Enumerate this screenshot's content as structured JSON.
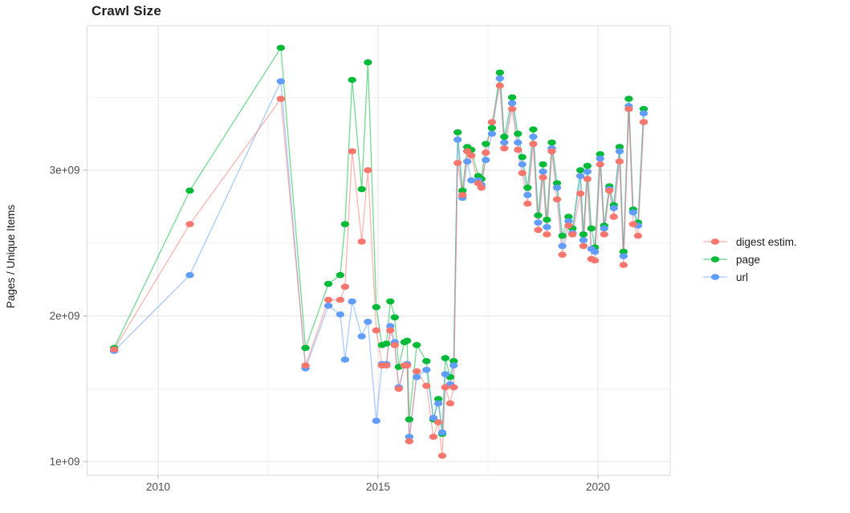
{
  "title": "Crawl Size",
  "y_axis": {
    "label": "Pages / Unique Items",
    "tick_labels": [
      "3e+09",
      "2e+09",
      "1e+09"
    ],
    "tick_values": [
      3,
      2,
      1
    ],
    "minor_values": [
      3.5,
      2.5,
      1.5
    ]
  },
  "x_axis": {
    "tick_labels": [
      "2010",
      "2015",
      "2020"
    ],
    "tick_values": [
      2010,
      2015,
      2020
    ],
    "minor_values": [
      2012.5,
      2017.5
    ]
  },
  "legend": {
    "items": [
      {
        "label": "digest estim.",
        "color": "#F8766D"
      },
      {
        "label": "page",
        "color": "#00BA38"
      },
      {
        "label": "url",
        "color": "#619CFF"
      }
    ]
  },
  "chart_data": {
    "type": "line",
    "title": "Crawl Size",
    "xlabel": "",
    "ylabel": "Pages / Unique Items",
    "values_unit": "1e9 (billions)",
    "xlim": [
      2008.4,
      2021.6
    ],
    "ylim": [
      0.9,
      4.0
    ],
    "x_ticks": [
      2010,
      2015,
      2020
    ],
    "y_ticks": [
      1000000000,
      2000000000,
      3000000000
    ],
    "grid": true,
    "legend_position": "right",
    "marker": "ellipse",
    "x_years": [
      2009.0,
      2010.72,
      2012.79,
      2013.35,
      2013.87,
      2014.14,
      2014.25,
      2014.41,
      2014.63,
      2014.77,
      2014.96,
      2015.09,
      2015.19,
      2015.28,
      2015.38,
      2015.47,
      2015.6,
      2015.66,
      2015.71,
      2015.88,
      2016.1,
      2016.26,
      2016.37,
      2016.46,
      2016.53,
      2016.64,
      2016.72,
      2016.81,
      2016.92,
      2017.03,
      2017.12,
      2017.28,
      2017.35,
      2017.45,
      2017.59,
      2017.77,
      2017.87,
      2018.05,
      2018.18,
      2018.28,
      2018.4,
      2018.53,
      2018.64,
      2018.75,
      2018.84,
      2018.95,
      2019.07,
      2019.19,
      2019.33,
      2019.42,
      2019.6,
      2019.67,
      2019.76,
      2019.85,
      2019.93,
      2020.05,
      2020.14,
      2020.26,
      2020.36,
      2020.49,
      2020.58,
      2020.7,
      2020.8,
      2020.91,
      2021.04
    ],
    "series": [
      {
        "name": "digest estim.",
        "color": "#F8766D",
        "values": [
          1.77,
          2.63,
          3.49,
          1.66,
          2.11,
          2.11,
          2.2,
          3.13,
          2.51,
          3.0,
          1.9,
          1.66,
          1.66,
          1.9,
          1.8,
          1.5,
          1.66,
          1.66,
          1.14,
          1.62,
          1.52,
          1.17,
          1.27,
          1.04,
          1.51,
          1.4,
          1.51,
          3.05,
          2.83,
          3.13,
          3.1,
          2.91,
          2.88,
          3.12,
          3.33,
          3.58,
          3.15,
          3.42,
          3.14,
          2.98,
          2.77,
          3.18,
          2.59,
          2.95,
          2.56,
          3.13,
          2.8,
          2.42,
          2.62,
          2.56,
          2.84,
          2.48,
          2.94,
          2.39,
          2.38,
          3.04,
          2.56,
          2.86,
          2.68,
          3.06,
          2.35,
          3.42,
          2.63,
          2.55,
          3.33
        ]
      },
      {
        "name": "page",
        "color": "#00BA38",
        "values": [
          1.78,
          2.86,
          3.84,
          1.78,
          2.22,
          2.28,
          2.63,
          3.62,
          2.87,
          3.74,
          2.06,
          1.8,
          1.81,
          2.1,
          1.99,
          1.65,
          1.82,
          1.83,
          1.29,
          1.8,
          1.69,
          1.29,
          1.43,
          1.19,
          1.71,
          1.58,
          1.69,
          3.26,
          2.86,
          3.16,
          3.14,
          2.96,
          2.94,
          3.18,
          3.29,
          3.67,
          3.23,
          3.5,
          3.25,
          3.09,
          2.88,
          3.28,
          2.69,
          3.04,
          2.66,
          3.19,
          2.91,
          2.55,
          2.68,
          2.6,
          3.0,
          2.56,
          3.03,
          2.6,
          2.47,
          3.11,
          2.62,
          2.89,
          2.76,
          3.16,
          2.44,
          3.49,
          2.73,
          2.64,
          3.42
        ]
      },
      {
        "name": "url",
        "color": "#619CFF",
        "values": [
          1.76,
          2.28,
          3.61,
          1.64,
          2.07,
          2.01,
          1.7,
          2.1,
          1.86,
          1.96,
          1.28,
          1.67,
          1.67,
          1.93,
          1.82,
          1.51,
          1.66,
          1.67,
          1.17,
          1.58,
          1.63,
          1.3,
          1.4,
          1.2,
          1.6,
          1.53,
          1.66,
          3.21,
          2.81,
          3.06,
          2.93,
          2.93,
          2.9,
          3.07,
          3.25,
          3.63,
          3.19,
          3.46,
          3.19,
          3.04,
          2.83,
          3.23,
          2.64,
          2.99,
          2.61,
          3.15,
          2.88,
          2.48,
          2.65,
          2.57,
          2.96,
          2.52,
          2.99,
          2.46,
          2.44,
          3.08,
          2.6,
          2.87,
          2.74,
          3.13,
          2.41,
          3.44,
          2.71,
          2.62,
          3.39
        ]
      }
    ]
  }
}
